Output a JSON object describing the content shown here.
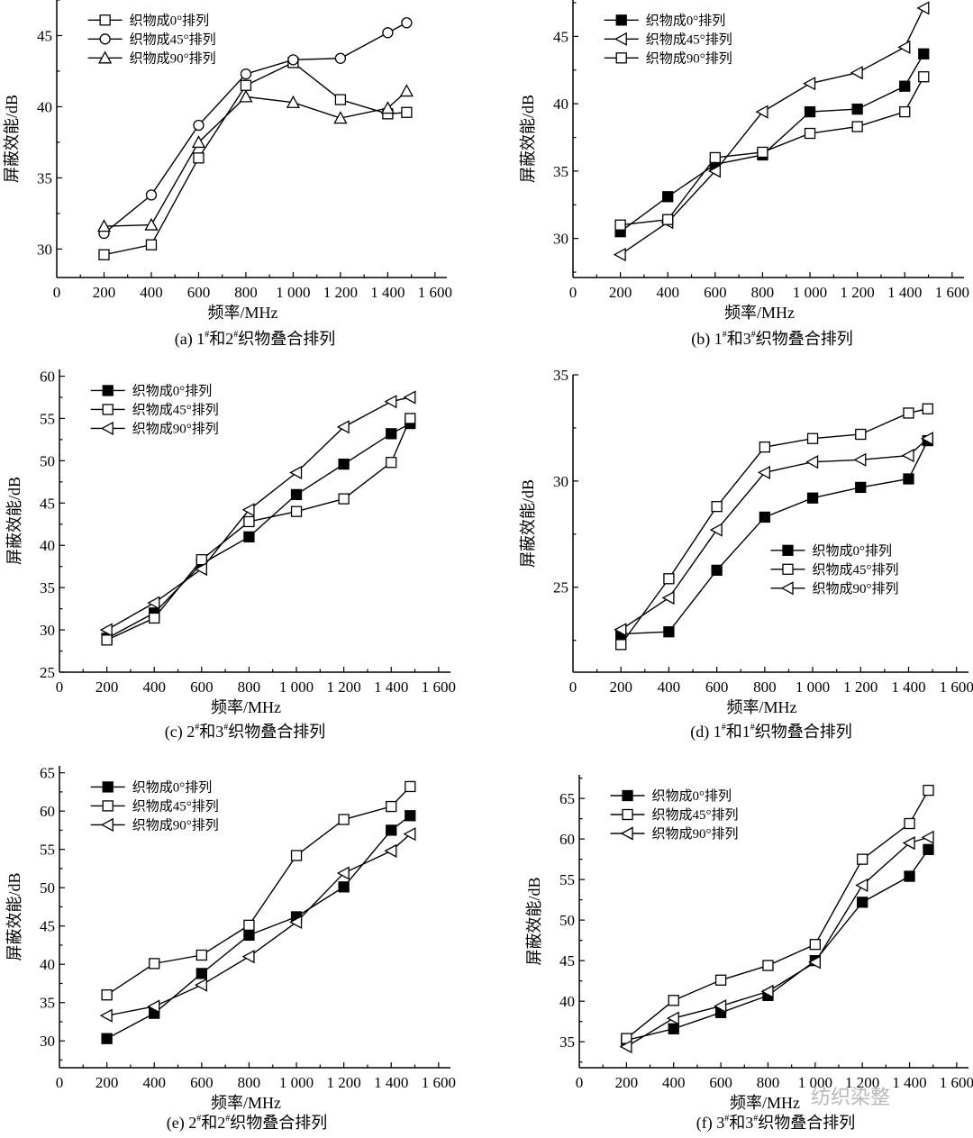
{
  "chart_data": [
    {
      "type": "line",
      "panel": "a",
      "caption": "(a) 1#和2#织物叠合排列",
      "xlabel": "频率/MHz",
      "ylabel": "屏蔽效能/dB",
      "xlim": [
        0,
        1650
      ],
      "ylim": [
        28,
        47.5
      ],
      "xticks": [
        0,
        200,
        400,
        600,
        800,
        1000,
        1200,
        1400,
        1600
      ],
      "xtick_labels": [
        "0",
        "200",
        "400",
        "600",
        "800",
        "1 000",
        "1 200",
        "1 400",
        "1 600"
      ],
      "yticks": [
        30,
        35,
        40,
        45
      ],
      "ytick_labels": [
        "30",
        "35",
        "40",
        "45"
      ],
      "grid": false,
      "legend_placement": "top-left",
      "x": [
        200,
        400,
        600,
        800,
        1000,
        1200,
        1400,
        1480
      ],
      "series": [
        {
          "name": "织物成0°排列",
          "marker": "square-open",
          "values": [
            29.6,
            30.3,
            36.4,
            41.5,
            43.1,
            40.5,
            39.5,
            39.6
          ]
        },
        {
          "name": "织物成45°排列",
          "marker": "circle-open",
          "values": [
            31.1,
            33.8,
            38.7,
            42.3,
            43.3,
            43.4,
            45.2,
            45.9
          ]
        },
        {
          "name": "织物成90°排列",
          "marker": "triangle-up-open",
          "values": [
            31.6,
            31.7,
            37.5,
            40.7,
            40.3,
            39.2,
            39.9,
            41.1
          ]
        }
      ]
    },
    {
      "type": "line",
      "panel": "b",
      "caption": "(b) 1#和3#织物叠合排列",
      "xlabel": "频率/MHz",
      "ylabel": "屏蔽效能/dB",
      "xlim": [
        0,
        1650
      ],
      "ylim": [
        27.1,
        47.7
      ],
      "xticks": [
        0,
        200,
        400,
        600,
        800,
        1000,
        1200,
        1400,
        1600
      ],
      "xtick_labels": [
        "0",
        "200",
        "400",
        "600",
        "800",
        "1 000",
        "1 200",
        "1 400",
        "1 600"
      ],
      "yticks": [
        30,
        35,
        40,
        45
      ],
      "ytick_labels": [
        "30",
        "35",
        "40",
        "45"
      ],
      "grid": false,
      "legend_placement": "top-left",
      "x": [
        200,
        400,
        600,
        800,
        1000,
        1200,
        1400,
        1480
      ],
      "series": [
        {
          "name": "织物成0°排列",
          "marker": "square-filled",
          "values": [
            30.5,
            33.1,
            35.5,
            36.2,
            39.4,
            39.6,
            41.3,
            43.7
          ]
        },
        {
          "name": "织物成45°排列",
          "marker": "triangle-left-open",
          "values": [
            28.8,
            31.2,
            35.0,
            39.4,
            41.5,
            42.3,
            44.2,
            47.1
          ]
        },
        {
          "name": "织物成90°排列",
          "marker": "square-open",
          "values": [
            31.0,
            31.4,
            36.0,
            36.4,
            37.8,
            38.3,
            39.4,
            42.0
          ]
        }
      ]
    },
    {
      "type": "line",
      "panel": "c",
      "caption": "(c) 2#和3#织物叠合排列",
      "xlabel": "频率/MHz",
      "ylabel": "屏蔽效能/dB",
      "xlim": [
        0,
        1650
      ],
      "ylim": [
        25,
        60.8
      ],
      "xticks": [
        0,
        200,
        400,
        600,
        800,
        1000,
        1200,
        1400,
        1600
      ],
      "xtick_labels": [
        "0",
        "200",
        "400",
        "600",
        "800",
        "1 000",
        "1 200",
        "1 400",
        "1 600"
      ],
      "yticks": [
        25,
        30,
        35,
        40,
        45,
        50,
        55,
        60
      ],
      "ytick_labels": [
        "25",
        "30",
        "35",
        "40",
        "45",
        "50",
        "55",
        "60"
      ],
      "grid": false,
      "legend_placement": "top-left",
      "x": [
        200,
        400,
        600,
        800,
        1000,
        1200,
        1400,
        1480
      ],
      "series": [
        {
          "name": "织物成0°排列",
          "marker": "square-filled",
          "values": [
            29.0,
            32.0,
            37.8,
            41.0,
            46.0,
            49.6,
            53.2,
            54.4
          ]
        },
        {
          "name": "织物成45°排列",
          "marker": "square-open",
          "values": [
            28.8,
            31.4,
            38.3,
            42.8,
            44.0,
            45.5,
            49.8,
            55.0
          ]
        },
        {
          "name": "织物成90°排列",
          "marker": "triangle-left-open",
          "values": [
            30.0,
            33.2,
            37.2,
            44.2,
            48.6,
            54.0,
            57.0,
            57.5
          ]
        }
      ]
    },
    {
      "type": "line",
      "panel": "d",
      "caption": "(d) 1#和1#织物叠合排列",
      "xlabel": "频率/MHz",
      "ylabel": "屏蔽效能/dB",
      "xlim": [
        0,
        1650
      ],
      "ylim": [
        21,
        35
      ],
      "xticks": [
        0,
        200,
        400,
        600,
        800,
        1000,
        1200,
        1400,
        1600
      ],
      "xtick_labels": [
        "0",
        "200",
        "400",
        "600",
        "800",
        "1 000",
        "1 200",
        "1 400",
        "1 600"
      ],
      "yticks": [
        25,
        30,
        35
      ],
      "ytick_labels": [
        "25",
        "30",
        "35"
      ],
      "grid": false,
      "legend_placement": "center-right",
      "x": [
        200,
        400,
        600,
        800,
        1000,
        1200,
        1400,
        1480
      ],
      "series": [
        {
          "name": "织物成0°排列",
          "marker": "square-filled",
          "values": [
            22.8,
            22.9,
            25.8,
            28.3,
            29.2,
            29.7,
            30.1,
            31.9
          ]
        },
        {
          "name": "织物成45°排列",
          "marker": "square-open",
          "values": [
            22.3,
            25.4,
            28.8,
            31.6,
            32.0,
            32.2,
            33.2,
            33.4
          ]
        },
        {
          "name": "织物成90°排列",
          "marker": "triangle-left-open",
          "values": [
            23.0,
            24.5,
            27.7,
            30.4,
            30.9,
            31.0,
            31.2,
            32.0
          ]
        }
      ]
    },
    {
      "type": "line",
      "panel": "e",
      "caption": "(e) 2#和2#织物叠合排列",
      "xlabel": "频率/MHz",
      "ylabel": "屏蔽效能/dB",
      "xlim": [
        0,
        1650
      ],
      "ylim": [
        26.5,
        65.9
      ],
      "xticks": [
        0,
        200,
        400,
        600,
        800,
        1000,
        1200,
        1400,
        1600
      ],
      "xtick_labels": [
        "0",
        "200",
        "400",
        "600",
        "800",
        "1 000",
        "1 200",
        "1 400",
        "1 600"
      ],
      "yticks": [
        30,
        35,
        40,
        45,
        50,
        55,
        60,
        65
      ],
      "ytick_labels": [
        "30",
        "35",
        "40",
        "45",
        "50",
        "55",
        "60",
        "65"
      ],
      "grid": false,
      "legend_placement": "top-left",
      "x": [
        200,
        400,
        600,
        800,
        1000,
        1200,
        1400,
        1480
      ],
      "series": [
        {
          "name": "织物成0°排列",
          "marker": "square-filled",
          "values": [
            30.3,
            33.6,
            38.8,
            43.8,
            46.2,
            50.1,
            57.5,
            59.4
          ]
        },
        {
          "name": "织物成45°排列",
          "marker": "square-open",
          "values": [
            36.0,
            40.1,
            41.2,
            45.1,
            54.2,
            58.9,
            60.6,
            63.2
          ]
        },
        {
          "name": "织物成90°排列",
          "marker": "triangle-left-open",
          "values": [
            33.3,
            34.5,
            37.3,
            41.0,
            45.5,
            51.9,
            54.8,
            57.0
          ]
        }
      ]
    },
    {
      "type": "line",
      "panel": "f",
      "caption": "(f) 3#和3#织物叠合排列",
      "xlabel": "频率/MHz",
      "ylabel": "屏蔽效能/dB",
      "xlim": [
        0,
        1650
      ],
      "ylim": [
        31.8,
        67.9
      ],
      "xticks": [
        0,
        200,
        400,
        600,
        800,
        1000,
        1200,
        1400,
        1600
      ],
      "xtick_labels": [
        "0",
        "200",
        "400",
        "600",
        "800",
        "1 000",
        "1 200",
        "1 400",
        "1 600"
      ],
      "yticks": [
        35,
        40,
        45,
        50,
        55,
        60,
        65
      ],
      "ytick_labels": [
        "35",
        "40",
        "45",
        "50",
        "55",
        "60",
        "65"
      ],
      "grid": false,
      "legend_placement": "top-left",
      "x": [
        200,
        400,
        600,
        800,
        1000,
        1200,
        1400,
        1480
      ],
      "series": [
        {
          "name": "织物成0°排列",
          "marker": "square-filled",
          "values": [
            35.2,
            36.6,
            38.6,
            40.7,
            45.0,
            52.2,
            55.4,
            58.7
          ]
        },
        {
          "name": "织物成45°排列",
          "marker": "square-open",
          "values": [
            35.4,
            40.1,
            42.6,
            44.4,
            47.0,
            57.5,
            61.9,
            66.0
          ]
        },
        {
          "name": "织物成90°排列",
          "marker": "triangle-left-open",
          "values": [
            34.4,
            37.9,
            39.4,
            41.2,
            44.8,
            54.3,
            59.5,
            60.2
          ]
        }
      ]
    }
  ],
  "watermark": "纺织染整"
}
